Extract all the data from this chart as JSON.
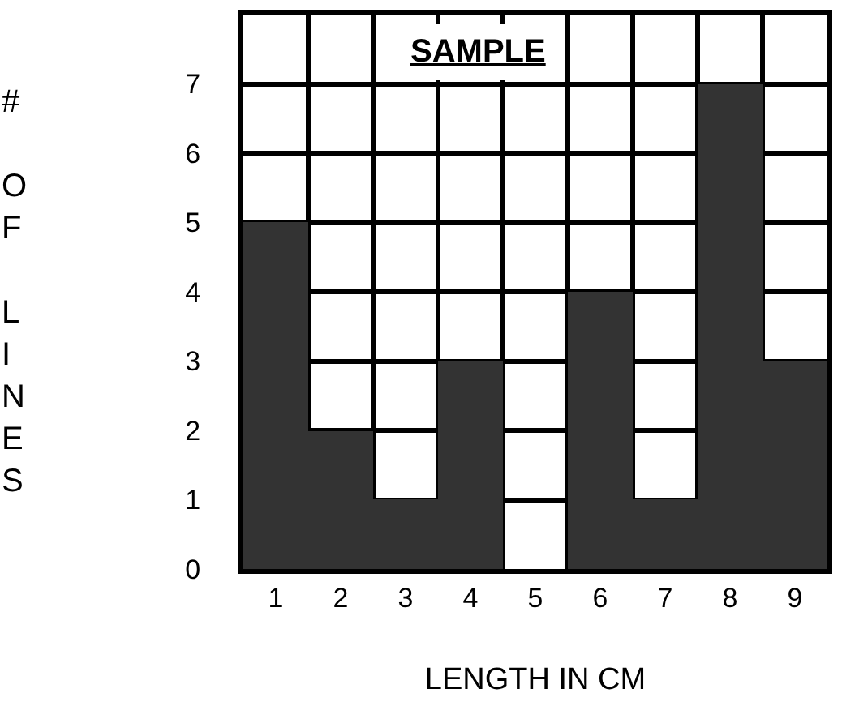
{
  "chart_data": {
    "type": "bar",
    "title": "SAMPLE",
    "xlabel": "LENGTH IN CM",
    "ylabel": "# OF LINES",
    "categories": [
      "1",
      "2",
      "3",
      "4",
      "5",
      "6",
      "7",
      "8",
      "9"
    ],
    "values": [
      5,
      2,
      1,
      3,
      0,
      4,
      1,
      7,
      3
    ],
    "color": "#333333",
    "ylim": [
      0,
      8
    ],
    "yticks": [
      0,
      1,
      2,
      3,
      4,
      5,
      6,
      7
    ],
    "grid": true,
    "legend": false
  }
}
